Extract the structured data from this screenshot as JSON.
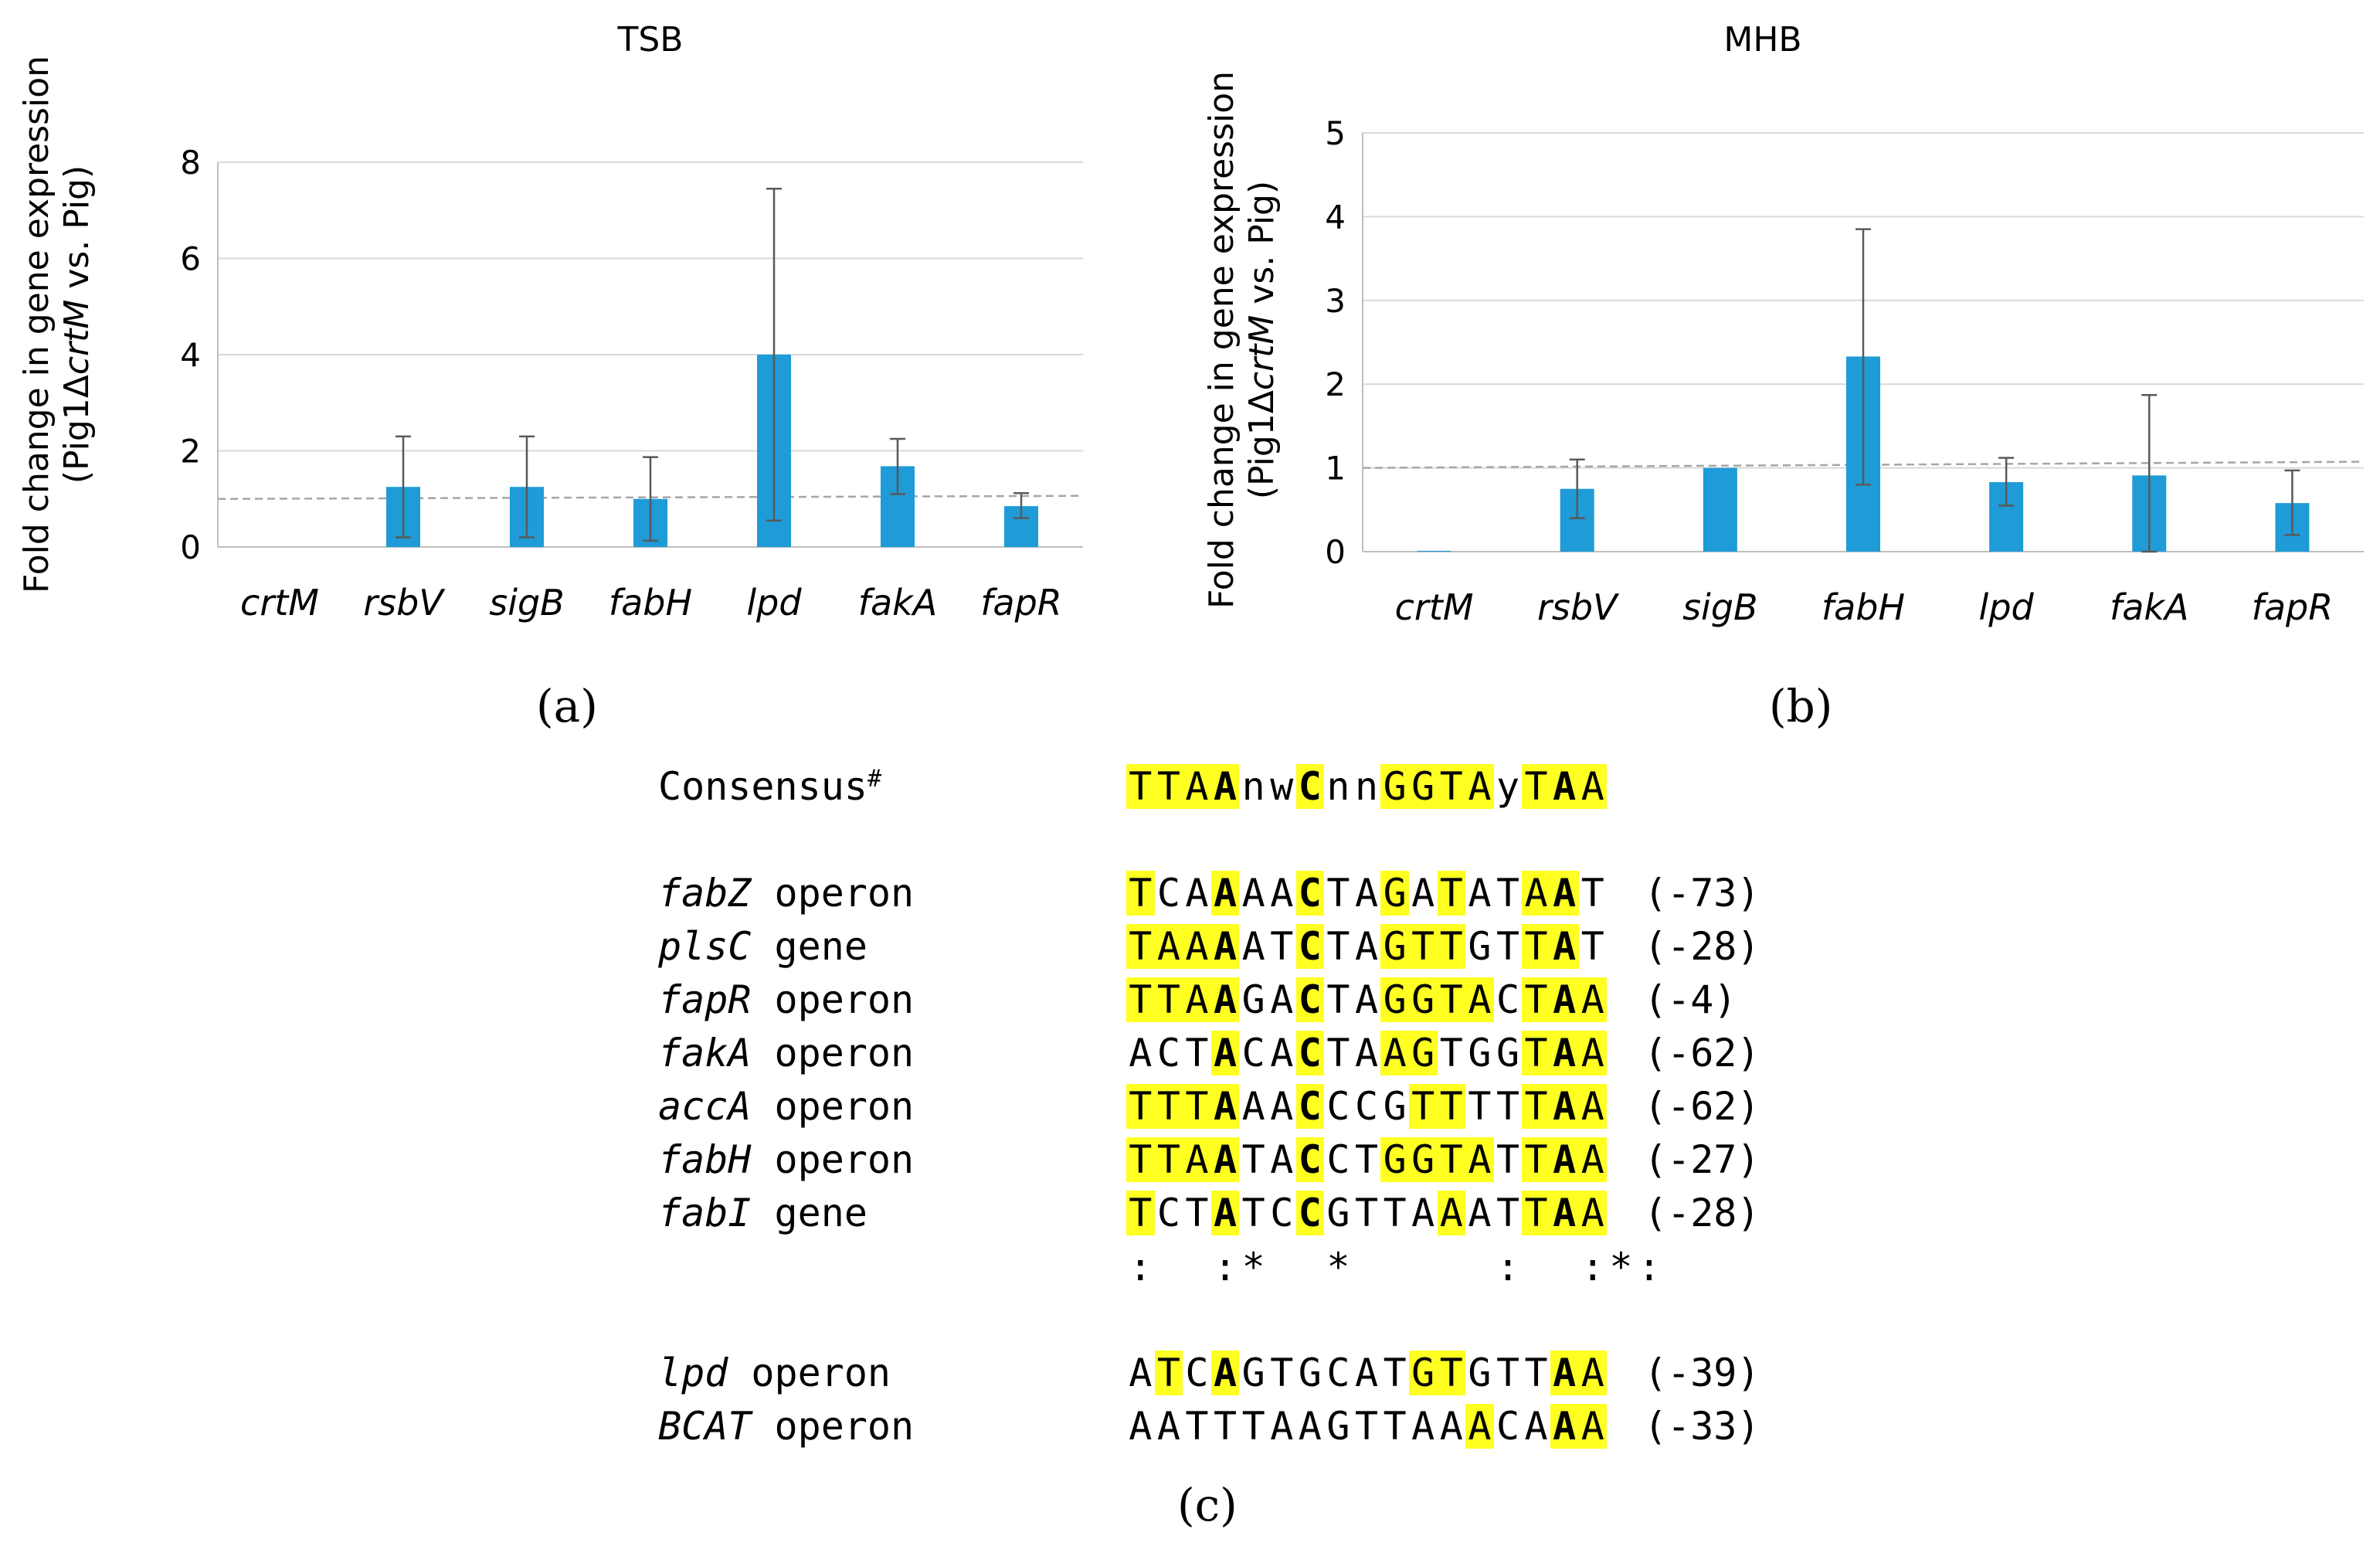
{
  "chart_data": [
    {
      "type": "bar",
      "panel": "(a)",
      "title": "TSB",
      "ylabel_line1": "Fold change in gene expression",
      "ylabel_line2": "(Pig1ΔcrtM vs. Pig)",
      "ylabel_line2_parts": [
        "(Pig1Δ",
        "crtM",
        " vs. Pig)"
      ],
      "categories": [
        "crtM",
        "rsbV",
        "sigB",
        "fabH",
        "lpd",
        "fakA",
        "fapR"
      ],
      "values": [
        0,
        1.25,
        1.25,
        1.0,
        4.0,
        1.68,
        0.85
      ],
      "error_upper": [
        null,
        2.3,
        2.3,
        1.87,
        7.45,
        2.25,
        1.12
      ],
      "error_lower": [
        null,
        0.2,
        0.2,
        0.13,
        0.55,
        1.1,
        0.6
      ],
      "yticks": [
        0,
        2,
        4,
        6,
        8
      ],
      "ylim": [
        0,
        8
      ],
      "reference_line": 1,
      "bar_color": "#1f9bd7"
    },
    {
      "type": "bar",
      "panel": "(b)",
      "title": "MHB",
      "ylabel_line1": "Fold change in gene expression",
      "ylabel_line2": "(Pig1ΔcrtM vs. Pig)",
      "ylabel_line2_parts": [
        "(Pig1Δ",
        "crtM",
        " vs. Pig)"
      ],
      "categories": [
        "crtM",
        "rsbV",
        "sigB",
        "fabH",
        "lpd",
        "fakA",
        "fapR"
      ],
      "values": [
        0.01,
        0.75,
        1.0,
        2.33,
        0.83,
        0.91,
        0.58
      ],
      "error_upper": [
        null,
        1.1,
        null,
        3.85,
        1.12,
        1.87,
        0.97
      ],
      "error_lower": [
        null,
        0.4,
        null,
        0.8,
        0.55,
        0.0,
        0.2
      ],
      "yticks": [
        0,
        1,
        2,
        3,
        4,
        5
      ],
      "ylim": [
        0,
        5
      ],
      "reference_line": 1,
      "bar_color": "#1f9bd7"
    }
  ],
  "panel_labels": {
    "a": "(a)",
    "b": "(b)",
    "c": "(c)"
  },
  "alignment": {
    "highlight_color": "#ffff22",
    "consensus": {
      "name": "Consensus",
      "superscript": "#",
      "sequence": "TTAAnwCnnGGTAyTAA",
      "highlight": [
        1,
        1,
        1,
        1,
        0,
        0,
        1,
        0,
        0,
        1,
        1,
        1,
        1,
        0,
        1,
        1,
        1
      ],
      "bold": [
        0,
        0,
        0,
        1,
        0,
        0,
        1,
        0,
        0,
        0,
        0,
        0,
        0,
        0,
        0,
        1,
        0
      ]
    },
    "rows": [
      {
        "gene": "fabZ",
        "type": "operon",
        "sequence": "TCAAAACTAGATATAAT",
        "position": "(-73)",
        "highlight": [
          1,
          0,
          0,
          1,
          0,
          0,
          1,
          0,
          0,
          1,
          0,
          1,
          0,
          0,
          1,
          1,
          0
        ],
        "bold": [
          0,
          0,
          0,
          1,
          0,
          0,
          1,
          0,
          0,
          0,
          0,
          0,
          0,
          0,
          0,
          1,
          0
        ]
      },
      {
        "gene": "plsC",
        "type": "gene",
        "sequence": "TAAAATCTAGTTGTTAT",
        "position": "(-28)",
        "highlight": [
          1,
          1,
          1,
          1,
          0,
          0,
          1,
          0,
          0,
          1,
          1,
          1,
          0,
          0,
          1,
          1,
          0
        ],
        "bold": [
          0,
          0,
          0,
          1,
          0,
          0,
          1,
          0,
          0,
          0,
          0,
          0,
          0,
          0,
          0,
          1,
          0
        ]
      },
      {
        "gene": "fapR",
        "type": "operon",
        "sequence": "TTAAGACTAGGTACTAA",
        "position": "(-4)",
        "highlight": [
          1,
          1,
          1,
          1,
          0,
          0,
          1,
          0,
          0,
          1,
          1,
          1,
          1,
          0,
          1,
          1,
          1
        ],
        "bold": [
          0,
          0,
          0,
          1,
          0,
          0,
          1,
          0,
          0,
          0,
          0,
          0,
          0,
          0,
          0,
          1,
          0
        ]
      },
      {
        "gene": "fakA",
        "type": "operon",
        "sequence": "ACTACACTAAGTGGTAA",
        "position": "(-62)",
        "highlight": [
          0,
          0,
          0,
          1,
          0,
          0,
          1,
          0,
          0,
          1,
          1,
          0,
          0,
          0,
          1,
          1,
          1
        ],
        "bold": [
          0,
          0,
          0,
          1,
          0,
          0,
          1,
          0,
          0,
          0,
          0,
          0,
          0,
          0,
          0,
          1,
          0
        ]
      },
      {
        "gene": "accA",
        "type": "operon",
        "sequence": "TTTAAACCCGTTTTTAA",
        "position": "(-62)",
        "highlight": [
          1,
          1,
          1,
          1,
          0,
          0,
          1,
          0,
          0,
          0,
          1,
          1,
          0,
          0,
          1,
          1,
          1
        ],
        "bold": [
          0,
          0,
          0,
          1,
          0,
          0,
          1,
          0,
          0,
          0,
          0,
          0,
          0,
          0,
          0,
          1,
          0
        ]
      },
      {
        "gene": "fabH",
        "type": "operon",
        "sequence": "TTAATACCTGGTATTAA",
        "position": "(-27)",
        "highlight": [
          1,
          1,
          1,
          1,
          0,
          0,
          1,
          0,
          0,
          1,
          1,
          1,
          1,
          0,
          1,
          1,
          1
        ],
        "bold": [
          0,
          0,
          0,
          1,
          0,
          0,
          1,
          0,
          0,
          0,
          0,
          0,
          0,
          0,
          0,
          1,
          0
        ]
      },
      {
        "gene": "fabI",
        "type": "gene",
        "sequence": "TCTATCCGTTAAATTAA",
        "position": "(-28)",
        "highlight": [
          1,
          0,
          0,
          1,
          0,
          0,
          1,
          0,
          0,
          0,
          0,
          1,
          0,
          0,
          1,
          1,
          1
        ],
        "bold": [
          0,
          0,
          0,
          1,
          0,
          0,
          1,
          0,
          0,
          0,
          0,
          0,
          0,
          0,
          0,
          1,
          0
        ]
      }
    ],
    "conservation": ":  :*  *     :  :*:",
    "extra_rows": [
      {
        "gene": "lpd",
        "type": "operon",
        "sequence": "ATCAGTGCATGTGTTAA",
        "position": "(-39)",
        "highlight": [
          0,
          1,
          0,
          1,
          0,
          0,
          0,
          0,
          0,
          0,
          1,
          1,
          0,
          0,
          0,
          1,
          1
        ],
        "bold": [
          0,
          0,
          0,
          1,
          0,
          0,
          0,
          0,
          0,
          0,
          0,
          0,
          0,
          0,
          0,
          1,
          0
        ]
      },
      {
        "gene": "BCAT",
        "type": "operon",
        "sequence": "AATTTAAGTTAAACAAA",
        "position": "(-33)",
        "highlight": [
          0,
          0,
          0,
          0,
          0,
          0,
          0,
          0,
          0,
          0,
          0,
          0,
          1,
          0,
          0,
          1,
          1
        ],
        "bold": [
          0,
          0,
          0,
          0,
          0,
          0,
          0,
          0,
          0,
          0,
          0,
          0,
          0,
          0,
          0,
          1,
          0
        ]
      }
    ]
  }
}
